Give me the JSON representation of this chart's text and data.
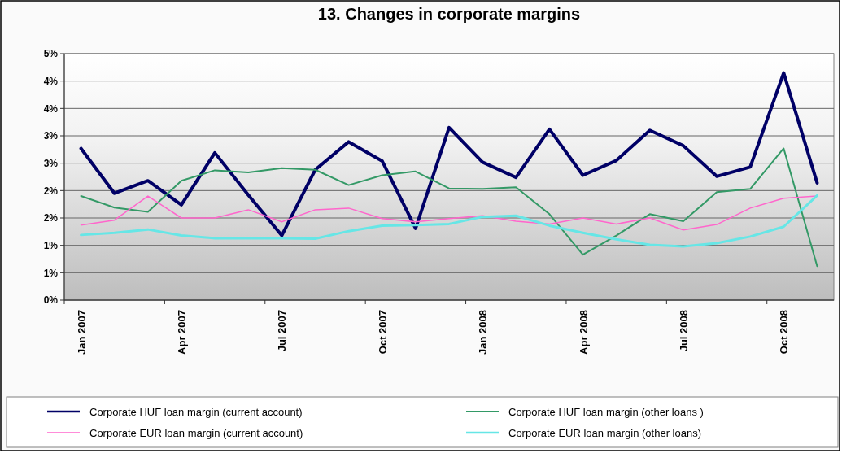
{
  "chart_data": {
    "type": "line",
    "title": "13. Changes in corporate margins",
    "categories": [
      "Jan 2007",
      null,
      null,
      "Apr 2007",
      null,
      null,
      "Jul 2007",
      null,
      null,
      "Oct 2007",
      null,
      null,
      "Jan 2008",
      null,
      null,
      "Apr 2008",
      null,
      null,
      "Jul 2008",
      null,
      null,
      "Oct 2008",
      null
    ],
    "series": [
      {
        "name": "Corporate HUF loan margin (current account)",
        "color": "#000066",
        "values": [
          2.77,
          1.95,
          2.18,
          1.74,
          2.69,
          1.92,
          1.18,
          2.38,
          2.89,
          2.54,
          1.31,
          3.15,
          2.52,
          2.24,
          3.12,
          2.28,
          2.55,
          3.1,
          2.82,
          2.26,
          2.43,
          4.15,
          2.14
        ]
      },
      {
        "name": "Corporate HUF loan margin (other loans )",
        "color": "#339966",
        "values": [
          1.9,
          1.69,
          1.61,
          2.18,
          2.37,
          2.33,
          2.41,
          2.38,
          2.1,
          2.28,
          2.35,
          2.04,
          2.03,
          2.06,
          1.57,
          0.83,
          1.18,
          1.57,
          1.44,
          1.97,
          2.03,
          2.77,
          0.62
        ]
      },
      {
        "name": "Corporate EUR loan margin (current account)",
        "color": "#ff66cc",
        "values": [
          1.37,
          1.46,
          1.9,
          1.5,
          1.5,
          1.65,
          1.43,
          1.65,
          1.68,
          1.49,
          1.43,
          1.49,
          1.54,
          1.44,
          1.39,
          1.5,
          1.39,
          1.5,
          1.28,
          1.38,
          1.68,
          1.86,
          1.9
        ]
      },
      {
        "name": "Corporate EUR loan margin (other loans)",
        "color": "#66e6e6",
        "values": [
          1.19,
          1.23,
          1.29,
          1.18,
          1.13,
          1.13,
          1.13,
          1.12,
          1.26,
          1.36,
          1.37,
          1.39,
          1.52,
          1.54,
          1.36,
          1.23,
          1.11,
          1.01,
          0.98,
          1.04,
          1.16,
          1.34,
          1.91
        ]
      }
    ],
    "ylim": [
      0,
      4.5
    ],
    "yticks": [
      {
        "value": 0,
        "label": "0%"
      },
      {
        "value": 0.5,
        "label": "1%"
      },
      {
        "value": 1,
        "label": "1%"
      },
      {
        "value": 1.5,
        "label": "2%"
      },
      {
        "value": 2,
        "label": "2%"
      },
      {
        "value": 2.5,
        "label": "3%"
      },
      {
        "value": 3,
        "label": "3%"
      },
      {
        "value": 3.5,
        "label": "4%"
      },
      {
        "value": 4,
        "label": "4%"
      },
      {
        "value": 4.5,
        "label": "5%"
      }
    ],
    "grid": "y",
    "legend": "bottom",
    "marker": "none",
    "line_style": "solid"
  }
}
